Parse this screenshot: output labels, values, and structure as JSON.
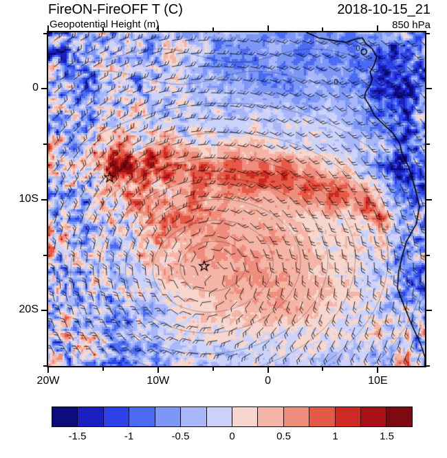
{
  "header": {
    "title": "FireON-FireOFF T (C)",
    "datetime": "2018-10-15_21",
    "subtitle": "Geopotential Height (m)",
    "level": "850 hPa"
  },
  "chart_data": {
    "type": "heatmap",
    "title": "FireON-FireOFF T (C)",
    "overlay_field": "Geopotential Height (m)",
    "pressure_level": "850 hPa",
    "valid_time": "2018-10-15_21",
    "units": "C",
    "lon_range": [
      -20,
      14.3
    ],
    "lat_range": [
      -25,
      5.1
    ],
    "xticks": {
      "lons": [
        -20,
        -10,
        0,
        10
      ],
      "labels": [
        "20W",
        "10W",
        "0",
        "10E"
      ]
    },
    "yticks": {
      "lats": [
        0,
        -10,
        -20
      ],
      "labels": [
        "0",
        "10S",
        "20S"
      ]
    },
    "colorbar": {
      "min": -1.75,
      "max": 1.75,
      "step": 0.25,
      "colors": [
        "#0c0d7a",
        "#1b1fc0",
        "#2c41e8",
        "#4a6bf2",
        "#7d97f6",
        "#a7b7f9",
        "#ccd3fb",
        "#f6d6cd",
        "#f4b4a6",
        "#ef8d7c",
        "#e55a47",
        "#ce2a23",
        "#a81016",
        "#7c0a10"
      ],
      "tick_labels": [
        "-1.5",
        "-1",
        "-0.5",
        "0",
        "0.5",
        "1",
        "1.5"
      ]
    },
    "markers": [
      {
        "shape": "star",
        "lon": -14.4,
        "lat": -8.0
      },
      {
        "shape": "star",
        "lon": -5.8,
        "lat": -16.0
      }
    ],
    "contour_labels": [
      {
        "text": "0",
        "lon": 8.0,
        "lat": 3.4
      },
      {
        "text": "0",
        "lon": 6.0,
        "lat": 0.4
      }
    ],
    "flow": {
      "type": "anticyclone",
      "center_lon": -5.5,
      "center_lat": -16.5
    },
    "height_contours": {
      "center_lon": -5,
      "center_lat": -16,
      "aspect": 0.75,
      "semi_major_deg": [
        3,
        5.5,
        8,
        10.5,
        13,
        16,
        19.5
      ]
    },
    "plume_amp": 0.85,
    "plume_wide_amp": 0.32,
    "plume_path": [
      [
        -13.5,
        -6.2
      ],
      [
        -11,
        -6.7
      ],
      [
        -8.5,
        -7
      ],
      [
        -6,
        -7.3
      ],
      [
        -3.5,
        -7.4
      ],
      [
        -1,
        -7.7
      ],
      [
        1.5,
        -8.1
      ],
      [
        4,
        -8.7
      ],
      [
        6.5,
        -9.4
      ],
      [
        9,
        -10.3
      ],
      [
        10.5,
        -11.2
      ]
    ],
    "warm_features": [
      {
        "lon": -4,
        "lat": -15.5,
        "slon": 7.5,
        "slat": 5,
        "amp": 0.62
      },
      {
        "lon": 2,
        "lat": -18.5,
        "slon": 5,
        "slat": 3.5,
        "amp": 0.3
      },
      {
        "lon": -9,
        "lat": -11.5,
        "slon": 4,
        "slat": 3,
        "amp": 0.35
      }
    ],
    "cool_features": [
      {
        "lon": 12.8,
        "lat": -4,
        "slon": 2,
        "slat": 5,
        "amp": -0.75
      },
      {
        "lon": 12.5,
        "lat": -14,
        "slon": 1.8,
        "slat": 4,
        "amp": -0.55
      },
      {
        "lon": 4,
        "lat": 2.5,
        "slon": 3.5,
        "slat": 2.2,
        "amp": -0.5
      },
      {
        "lon": -3,
        "lat": 2.5,
        "slon": 2.5,
        "slat": 2,
        "amp": -0.4
      },
      {
        "lon": 12,
        "lat": 2,
        "slon": 2.5,
        "slat": 2.5,
        "amp": -0.55
      },
      {
        "lon": -13,
        "lat": -20,
        "slon": 3,
        "slat": 3,
        "amp": -0.3
      }
    ],
    "noise": {
      "base_mean": -0.28,
      "base_amp": 0.42,
      "west_amp": 1.15,
      "east_amp": 1.0
    },
    "coastline": [
      [
        3.5,
        5.1
      ],
      [
        4.6,
        4.6
      ],
      [
        6,
        4.35
      ],
      [
        7.1,
        4.2
      ],
      [
        8,
        4.5
      ],
      [
        8.6,
        4.6
      ],
      [
        8.9,
        4.1
      ],
      [
        9.5,
        3.6
      ],
      [
        9.9,
        2.9
      ],
      [
        9.7,
        2.2
      ],
      [
        9.3,
        1.5
      ],
      [
        9.5,
        0.9
      ],
      [
        9.3,
        0.3
      ],
      [
        8.9,
        -0.3
      ],
      [
        8.8,
        -0.8
      ],
      [
        9.3,
        -1.6
      ],
      [
        9.7,
        -2.4
      ],
      [
        10.5,
        -3.2
      ],
      [
        11.3,
        -3.9
      ],
      [
        12,
        -4.9
      ],
      [
        12.2,
        -5.8
      ],
      [
        12.8,
        -7
      ],
      [
        13.3,
        -8.6
      ],
      [
        13.8,
        -10.6
      ],
      [
        13.5,
        -12.2
      ],
      [
        12.6,
        -13.8
      ],
      [
        12.2,
        -15.2
      ],
      [
        11.9,
        -16.5
      ],
      [
        11.8,
        -18
      ],
      [
        12.4,
        -19.6
      ],
      [
        13.1,
        -21.3
      ],
      [
        13.9,
        -23
      ],
      [
        14.3,
        -24.2
      ],
      [
        14.3,
        -25
      ]
    ],
    "island": {
      "lon": 8.75,
      "lat": 3.35
    }
  }
}
